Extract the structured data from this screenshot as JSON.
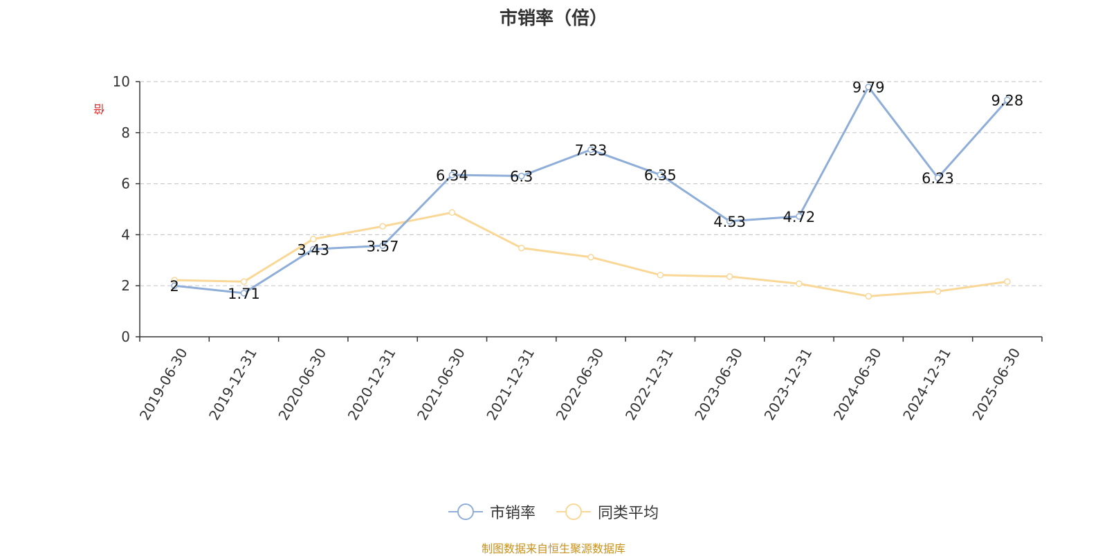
{
  "chart_data": {
    "type": "line",
    "title": "市销率（倍）",
    "ylabel": "倍",
    "categories": [
      "2019-06-30",
      "2019-12-31",
      "2020-06-30",
      "2020-12-31",
      "2021-06-30",
      "2021-12-31",
      "2022-06-30",
      "2022-12-31",
      "2023-06-30",
      "2023-12-31",
      "2024-06-30",
      "2024-12-31",
      "2025-06-30"
    ],
    "ylim": [
      0,
      10
    ],
    "yticks": [
      0,
      2,
      4,
      6,
      8,
      10
    ],
    "grid": true,
    "legend_position": "bottom",
    "series": [
      {
        "name": "市销率",
        "color": "#8eadd8",
        "values": [
          2,
          1.71,
          3.43,
          3.57,
          6.34,
          6.3,
          7.33,
          6.35,
          4.53,
          4.72,
          9.79,
          6.23,
          9.28
        ],
        "data_labels": [
          "2",
          "1.71",
          "3.43",
          "3.57",
          "6.34",
          "6.3",
          "7.33",
          "6.35",
          "4.53",
          "4.72",
          "9.79",
          "6.23",
          "9.28"
        ]
      },
      {
        "name": "同类平均",
        "color": "#f9d796",
        "values": [
          2.22,
          2.16,
          3.83,
          4.33,
          4.87,
          3.48,
          3.12,
          2.42,
          2.36,
          2.08,
          1.59,
          1.78,
          2.16
        ]
      }
    ]
  },
  "footer": {
    "source": "制图数据来自恒生聚源数据库"
  }
}
